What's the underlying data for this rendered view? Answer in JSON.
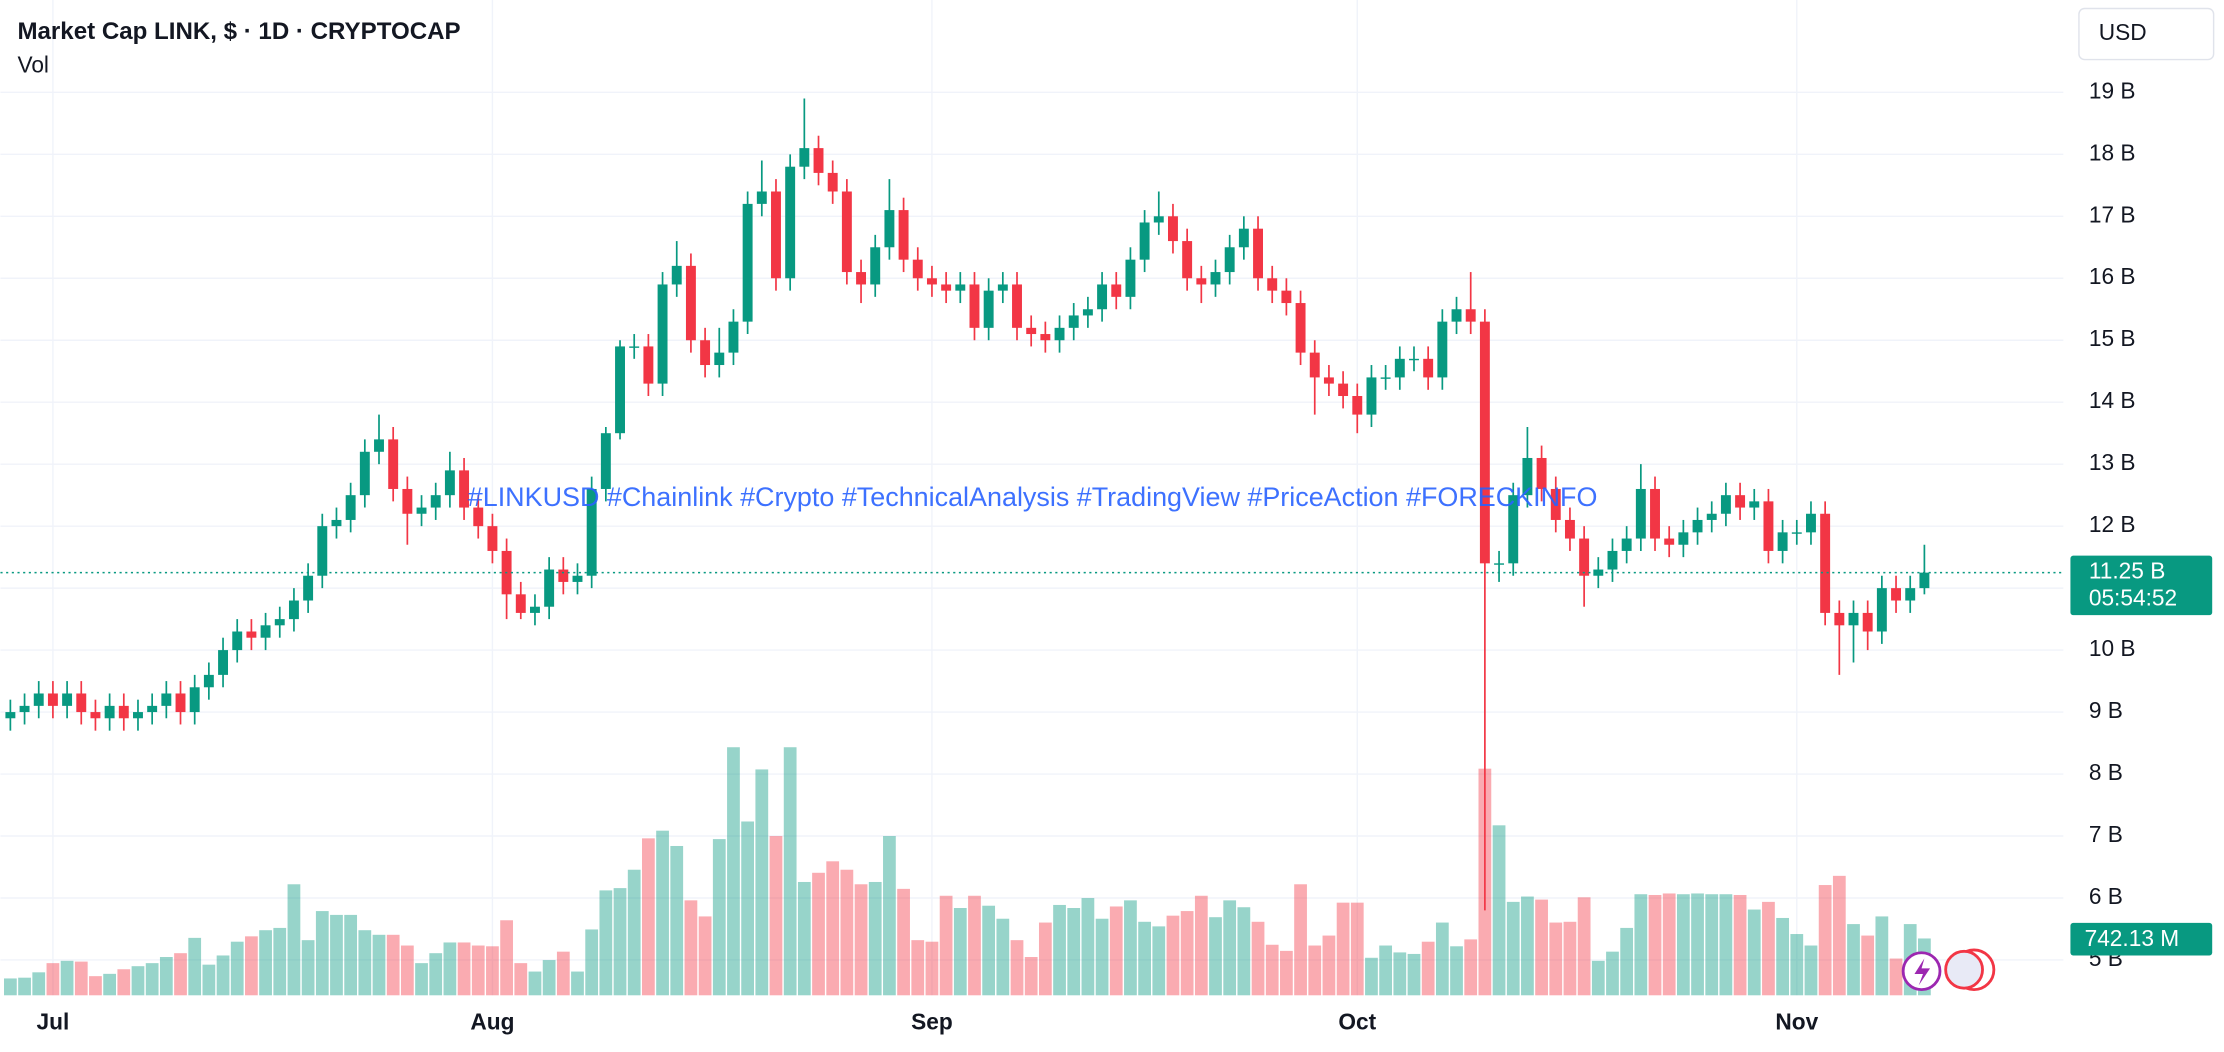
{
  "chart_data": {
    "type": "candlestick",
    "title": "Market Cap LINK, $ · 1D · CRYPTOCAP",
    "indicator": "Vol",
    "currency": "USD",
    "watermark": "#LINKUSD #Chainlink #Crypto #TechnicalAnalysis #TradingView #PriceAction #FORECKINFO",
    "open": [
      8.9,
      9.0,
      9.1,
      9.3,
      9.1,
      9.3,
      9.0,
      8.9,
      9.1,
      8.9,
      9.0,
      9.1,
      9.3,
      9.0,
      9.4,
      9.6,
      10.0,
      10.3,
      10.2,
      10.4,
      10.5,
      10.8,
      11.2,
      12.0,
      12.1,
      12.5,
      13.2,
      13.4,
      12.6,
      12.2,
      12.3,
      12.5,
      12.9,
      12.3,
      12.0,
      11.6,
      10.9,
      10.6,
      10.7,
      11.3,
      11.1,
      11.2,
      12.6,
      13.5,
      14.9,
      14.9,
      14.3,
      15.9,
      16.2,
      15.0,
      14.6,
      14.8,
      15.3,
      17.2,
      17.4,
      16.0,
      17.8,
      18.1,
      17.7,
      17.4,
      16.1,
      15.9,
      16.5,
      17.1,
      16.3,
      16.0,
      15.9,
      15.8,
      15.9,
      15.2,
      15.8,
      15.9,
      15.2,
      15.1,
      15.0,
      15.2,
      15.4,
      15.5,
      15.9,
      15.7,
      16.3,
      16.9,
      17.0,
      16.6,
      16.0,
      15.9,
      16.1,
      16.5,
      16.8,
      16.0,
      15.8,
      15.6,
      14.8,
      14.4,
      14.3,
      14.1,
      13.8,
      14.4,
      14.4,
      14.7,
      14.7,
      14.4,
      15.3,
      15.5,
      15.3,
      11.4,
      11.4,
      12.5,
      13.1,
      12.6,
      12.1,
      11.8,
      11.2,
      11.3,
      11.6,
      11.8,
      12.6,
      11.8,
      11.7,
      11.9,
      12.1,
      12.2,
      12.5,
      12.3,
      12.4,
      11.6,
      11.9,
      11.9,
      12.2,
      10.6,
      10.4,
      10.6,
      10.3,
      11.0,
      10.8,
      11.0
    ],
    "high": [
      9.2,
      9.3,
      9.5,
      9.5,
      9.5,
      9.5,
      9.2,
      9.3,
      9.3,
      9.2,
      9.3,
      9.5,
      9.5,
      9.6,
      9.8,
      10.2,
      10.5,
      10.5,
      10.6,
      10.7,
      11.0,
      11.4,
      12.2,
      12.3,
      12.7,
      13.4,
      13.8,
      13.6,
      12.8,
      12.5,
      12.7,
      13.2,
      13.1,
      12.5,
      12.2,
      11.8,
      11.1,
      10.9,
      11.5,
      11.5,
      11.4,
      12.8,
      13.6,
      15.0,
      15.1,
      15.1,
      16.1,
      16.6,
      16.4,
      15.2,
      15.2,
      15.5,
      17.4,
      17.9,
      17.6,
      18.0,
      18.9,
      18.3,
      17.9,
      17.6,
      16.3,
      16.7,
      17.6,
      17.3,
      16.5,
      16.2,
      16.1,
      16.1,
      16.1,
      16.0,
      16.1,
      16.1,
      15.4,
      15.3,
      15.4,
      15.6,
      15.7,
      16.1,
      16.1,
      16.5,
      17.1,
      17.4,
      17.2,
      16.8,
      16.2,
      16.3,
      16.7,
      17.0,
      17.0,
      16.2,
      16.0,
      15.8,
      15.0,
      14.6,
      14.5,
      14.3,
      14.6,
      14.6,
      14.9,
      14.9,
      14.9,
      15.5,
      15.7,
      16.1,
      15.5,
      11.6,
      12.7,
      13.6,
      13.3,
      12.8,
      12.3,
      12.0,
      11.5,
      11.8,
      12.0,
      13.0,
      12.8,
      12.0,
      12.1,
      12.3,
      12.4,
      12.7,
      12.7,
      12.6,
      12.6,
      12.1,
      12.1,
      12.4,
      12.4,
      10.8,
      10.8,
      10.8,
      11.2,
      11.2,
      11.2,
      11.7
    ],
    "low": [
      8.7,
      8.8,
      8.9,
      8.9,
      8.9,
      8.8,
      8.7,
      8.7,
      8.7,
      8.7,
      8.8,
      8.9,
      8.8,
      8.8,
      9.2,
      9.4,
      9.8,
      10.0,
      10.0,
      10.2,
      10.3,
      10.6,
      11.0,
      11.8,
      11.9,
      12.3,
      13.0,
      12.4,
      11.7,
      12.0,
      12.1,
      12.3,
      12.1,
      11.8,
      11.4,
      10.5,
      10.5,
      10.4,
      10.5,
      10.9,
      10.9,
      11.0,
      12.4,
      13.4,
      14.7,
      14.1,
      14.1,
      15.7,
      14.8,
      14.4,
      14.4,
      14.6,
      15.1,
      17.0,
      15.8,
      15.8,
      17.6,
      17.5,
      17.2,
      15.9,
      15.6,
      15.7,
      16.3,
      16.1,
      15.8,
      15.7,
      15.6,
      15.6,
      15.0,
      15.0,
      15.6,
      15.0,
      14.9,
      14.8,
      14.8,
      15.0,
      15.2,
      15.3,
      15.5,
      15.5,
      16.1,
      16.7,
      16.4,
      15.8,
      15.6,
      15.7,
      15.9,
      16.3,
      15.8,
      15.6,
      15.4,
      14.6,
      13.8,
      14.1,
      13.9,
      13.5,
      13.6,
      14.2,
      14.2,
      14.5,
      14.2,
      14.2,
      15.1,
      15.1,
      5.8,
      11.1,
      11.2,
      12.3,
      12.4,
      11.9,
      11.6,
      10.7,
      11.0,
      11.1,
      11.4,
      11.6,
      11.6,
      11.5,
      11.5,
      11.7,
      11.9,
      12.0,
      12.1,
      12.1,
      11.4,
      11.4,
      11.7,
      11.7,
      10.4,
      9.6,
      9.8,
      10.0,
      10.1,
      10.6,
      10.6,
      10.9
    ],
    "close": [
      9.0,
      9.1,
      9.3,
      9.1,
      9.3,
      9.0,
      8.9,
      9.1,
      8.9,
      9.0,
      9.1,
      9.3,
      9.0,
      9.4,
      9.6,
      10.0,
      10.3,
      10.2,
      10.4,
      10.5,
      10.8,
      11.2,
      12.0,
      12.1,
      12.5,
      13.2,
      13.4,
      12.6,
      12.2,
      12.3,
      12.5,
      12.9,
      12.3,
      12.0,
      11.6,
      10.9,
      10.6,
      10.7,
      11.3,
      11.1,
      11.2,
      12.6,
      13.5,
      14.9,
      14.9,
      14.3,
      15.9,
      16.2,
      15.0,
      14.6,
      14.8,
      15.3,
      17.2,
      17.4,
      16.0,
      17.8,
      18.1,
      17.7,
      17.4,
      16.1,
      15.9,
      16.5,
      17.1,
      16.3,
      16.0,
      15.9,
      15.8,
      15.9,
      15.2,
      15.8,
      15.9,
      15.2,
      15.1,
      15.0,
      15.2,
      15.4,
      15.5,
      15.9,
      15.7,
      16.3,
      16.9,
      17.0,
      16.6,
      16.0,
      15.9,
      16.1,
      16.5,
      16.8,
      16.0,
      15.8,
      15.6,
      14.8,
      14.4,
      14.3,
      14.1,
      13.8,
      14.4,
      14.4,
      14.7,
      14.7,
      14.4,
      15.3,
      15.5,
      15.3,
      11.4,
      11.4,
      12.5,
      13.1,
      12.6,
      12.1,
      11.8,
      11.2,
      11.3,
      11.6,
      11.8,
      12.6,
      11.8,
      11.7,
      11.9,
      12.1,
      12.2,
      12.5,
      12.3,
      12.4,
      11.6,
      11.9,
      11.9,
      12.2,
      10.6,
      10.4,
      10.6,
      10.3,
      11.0,
      10.8,
      11.0,
      11.25
    ],
    "volume": [
      220,
      230,
      300,
      420,
      450,
      440,
      250,
      280,
      340,
      380,
      420,
      500,
      550,
      750,
      400,
      520,
      700,
      770,
      850,
      880,
      1450,
      720,
      1100,
      1050,
      1050,
      850,
      790,
      790,
      650,
      420,
      550,
      690,
      690,
      650,
      640,
      980,
      420,
      310,
      460,
      570,
      310,
      860,
      1370,
      1400,
      1640,
      2050,
      2150,
      1950,
      1240,
      1030,
      2040,
      3240,
      2270,
      2950,
      2080,
      3240,
      1480,
      1600,
      1750,
      1640,
      1450,
      1480,
      2080,
      1390,
      720,
      700,
      1300,
      1140,
      1300,
      1170,
      1000,
      720,
      500,
      950,
      1180,
      1140,
      1270,
      1000,
      1160,
      1240,
      960,
      900,
      1040,
      1100,
      1300,
      1020,
      1240,
      1150,
      960,
      660,
      580,
      1450,
      650,
      780,
      1210,
      1210,
      490,
      650,
      560,
      540,
      700,
      950,
      640,
      730,
      2960,
      2220,
      1220,
      1290,
      1250,
      950,
      960,
      1280,
      450,
      570,
      880,
      1320,
      1310,
      1330,
      1320,
      1330,
      1320,
      1320,
      1310,
      1120,
      1220,
      1010,
      800,
      650,
      1440,
      1560,
      930,
      780,
      1030,
      480,
      930,
      742.13
    ],
    "last_close_label": "11.25 B",
    "countdown": "05:54:52",
    "last_volume_label": "742.13 M",
    "ylim": [
      4.43,
      20.49
    ],
    "yticks": [
      {
        "value": 5,
        "label": "5 B"
      },
      {
        "value": 6,
        "label": "6 B"
      },
      {
        "value": 7,
        "label": "7 B"
      },
      {
        "value": 8,
        "label": "8 B"
      },
      {
        "value": 9,
        "label": "9 B"
      },
      {
        "value": 10,
        "label": "10 B"
      },
      {
        "value": 11,
        "label": "11 B"
      },
      {
        "value": 12,
        "label": "12 B"
      },
      {
        "value": 13,
        "label": "13 B"
      },
      {
        "value": 14,
        "label": "14 B"
      },
      {
        "value": 15,
        "label": "15 B"
      },
      {
        "value": 16,
        "label": "16 B"
      },
      {
        "value": 17,
        "label": "17 B"
      },
      {
        "value": 18,
        "label": "18 B"
      },
      {
        "value": 19,
        "label": "19 B"
      }
    ],
    "volume_lim": [
      0,
      13000
    ],
    "xticks": [
      {
        "value": 3,
        "label": "Jul"
      },
      {
        "value": 34,
        "label": "Aug"
      },
      {
        "value": 65,
        "label": "Sep"
      },
      {
        "value": 95,
        "label": "Oct"
      },
      {
        "value": 126,
        "label": "Nov"
      }
    ],
    "up_color": "#089981",
    "down_color": "#f23645",
    "grid": true
  }
}
